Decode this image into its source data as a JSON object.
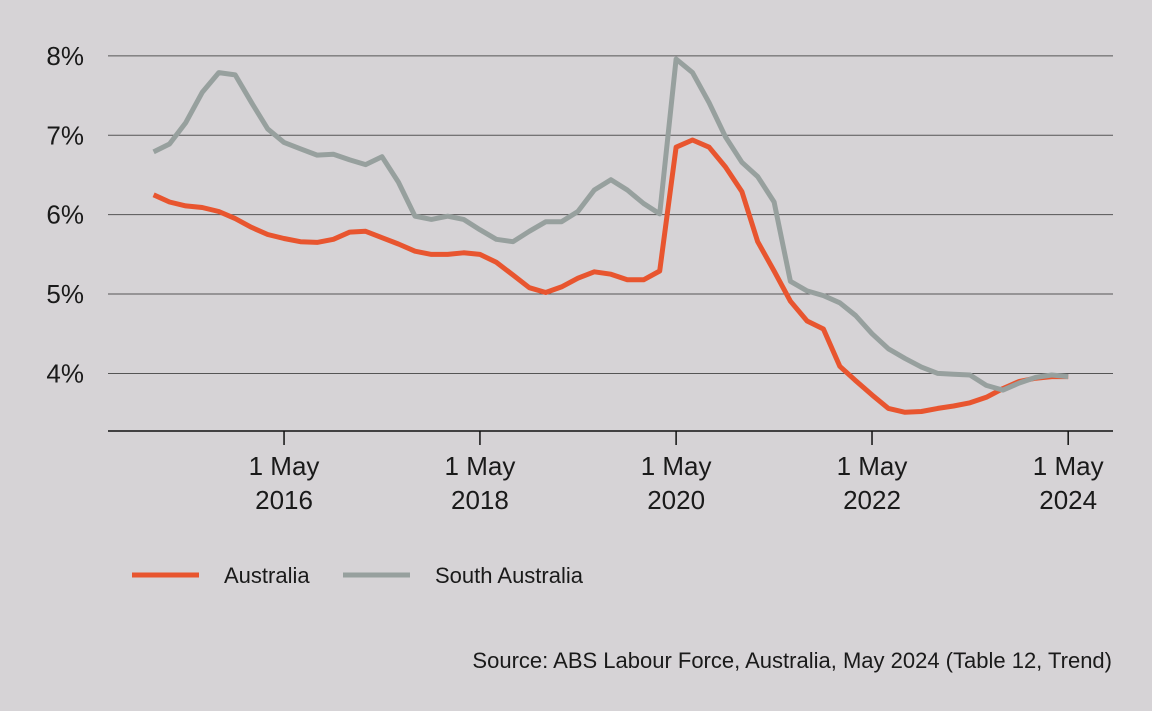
{
  "chart_data": {
    "type": "line",
    "x": [
      "2015-01-01",
      "2015-03-01",
      "2015-05-01",
      "2015-07-01",
      "2015-09-01",
      "2015-11-01",
      "2016-01-01",
      "2016-03-01",
      "2016-05-01",
      "2016-07-01",
      "2016-09-01",
      "2016-11-01",
      "2017-01-01",
      "2017-03-01",
      "2017-05-01",
      "2017-07-01",
      "2017-09-01",
      "2017-11-01",
      "2018-01-01",
      "2018-03-01",
      "2018-05-01",
      "2018-07-01",
      "2018-09-01",
      "2018-11-01",
      "2019-01-01",
      "2019-03-01",
      "2019-05-01",
      "2019-07-01",
      "2019-09-01",
      "2019-11-01",
      "2020-01-01",
      "2020-03-01",
      "2020-05-01",
      "2020-07-01",
      "2020-09-01",
      "2020-11-01",
      "2021-01-01",
      "2021-03-01",
      "2021-05-01",
      "2021-07-01",
      "2021-09-01",
      "2021-11-01",
      "2022-01-01",
      "2022-03-01",
      "2022-05-01",
      "2022-07-01",
      "2022-09-01",
      "2022-11-01",
      "2023-01-01",
      "2023-03-01",
      "2023-05-01",
      "2023-07-01",
      "2023-09-01",
      "2023-11-01",
      "2024-01-01",
      "2024-03-01",
      "2024-05-01"
    ],
    "series": [
      {
        "name": "Australia",
        "color": "#e8552f",
        "values": [
          6.25,
          6.16,
          6.11,
          6.09,
          6.04,
          5.95,
          5.84,
          5.75,
          5.7,
          5.66,
          5.65,
          5.69,
          5.78,
          5.79,
          5.71,
          5.63,
          5.54,
          5.5,
          5.5,
          5.52,
          5.5,
          5.4,
          5.24,
          5.08,
          5.02,
          5.09,
          5.2,
          5.28,
          5.25,
          5.18,
          5.18,
          5.29,
          6.85,
          6.94,
          6.85,
          6.6,
          6.29,
          5.66,
          5.29,
          4.91,
          4.66,
          4.56,
          4.09,
          3.91,
          3.73,
          3.56,
          3.51,
          3.52,
          3.56,
          3.59,
          3.63,
          3.7,
          3.81,
          3.9,
          3.94,
          3.96,
          3.96
        ]
      },
      {
        "name": "South Australia",
        "color": "#97a09e",
        "values": [
          6.79,
          6.89,
          7.16,
          7.54,
          7.79,
          7.76,
          7.41,
          7.08,
          6.91,
          6.83,
          6.75,
          6.76,
          6.69,
          6.63,
          6.73,
          6.41,
          5.98,
          5.94,
          5.98,
          5.94,
          5.81,
          5.69,
          5.66,
          5.79,
          5.91,
          5.91,
          6.04,
          6.31,
          6.44,
          6.31,
          6.14,
          6.01,
          7.96,
          7.79,
          7.41,
          6.98,
          6.66,
          6.48,
          6.16,
          5.16,
          5.04,
          4.98,
          4.89,
          4.73,
          4.5,
          4.31,
          4.19,
          4.08,
          4.0,
          3.99,
          3.98,
          3.85,
          3.79,
          3.88,
          3.95,
          3.98,
          3.96
        ]
      }
    ],
    "xlim": [
      "2014-07-15",
      "2024-10-15"
    ],
    "xticks": [
      {
        "value": "2016-05-01",
        "label": "1 May 2016"
      },
      {
        "value": "2018-05-01",
        "label": "1 May 2018"
      },
      {
        "value": "2020-05-01",
        "label": "1 May 2020"
      },
      {
        "value": "2022-05-01",
        "label": "1 May 2022"
      },
      {
        "value": "2024-05-01",
        "label": "1 May 2024"
      }
    ],
    "ylim": [
      3.275,
      8.2
    ],
    "yticks": [
      {
        "value": 4,
        "label": "4%"
      },
      {
        "value": 5,
        "label": "5%"
      },
      {
        "value": 6,
        "label": "6%"
      },
      {
        "value": 7,
        "label": "7%"
      },
      {
        "value": 8,
        "label": "8%"
      }
    ],
    "grid": true,
    "source": "Source: ABS Labour Force, Australia, May 2024 (Table 12, Trend)"
  }
}
